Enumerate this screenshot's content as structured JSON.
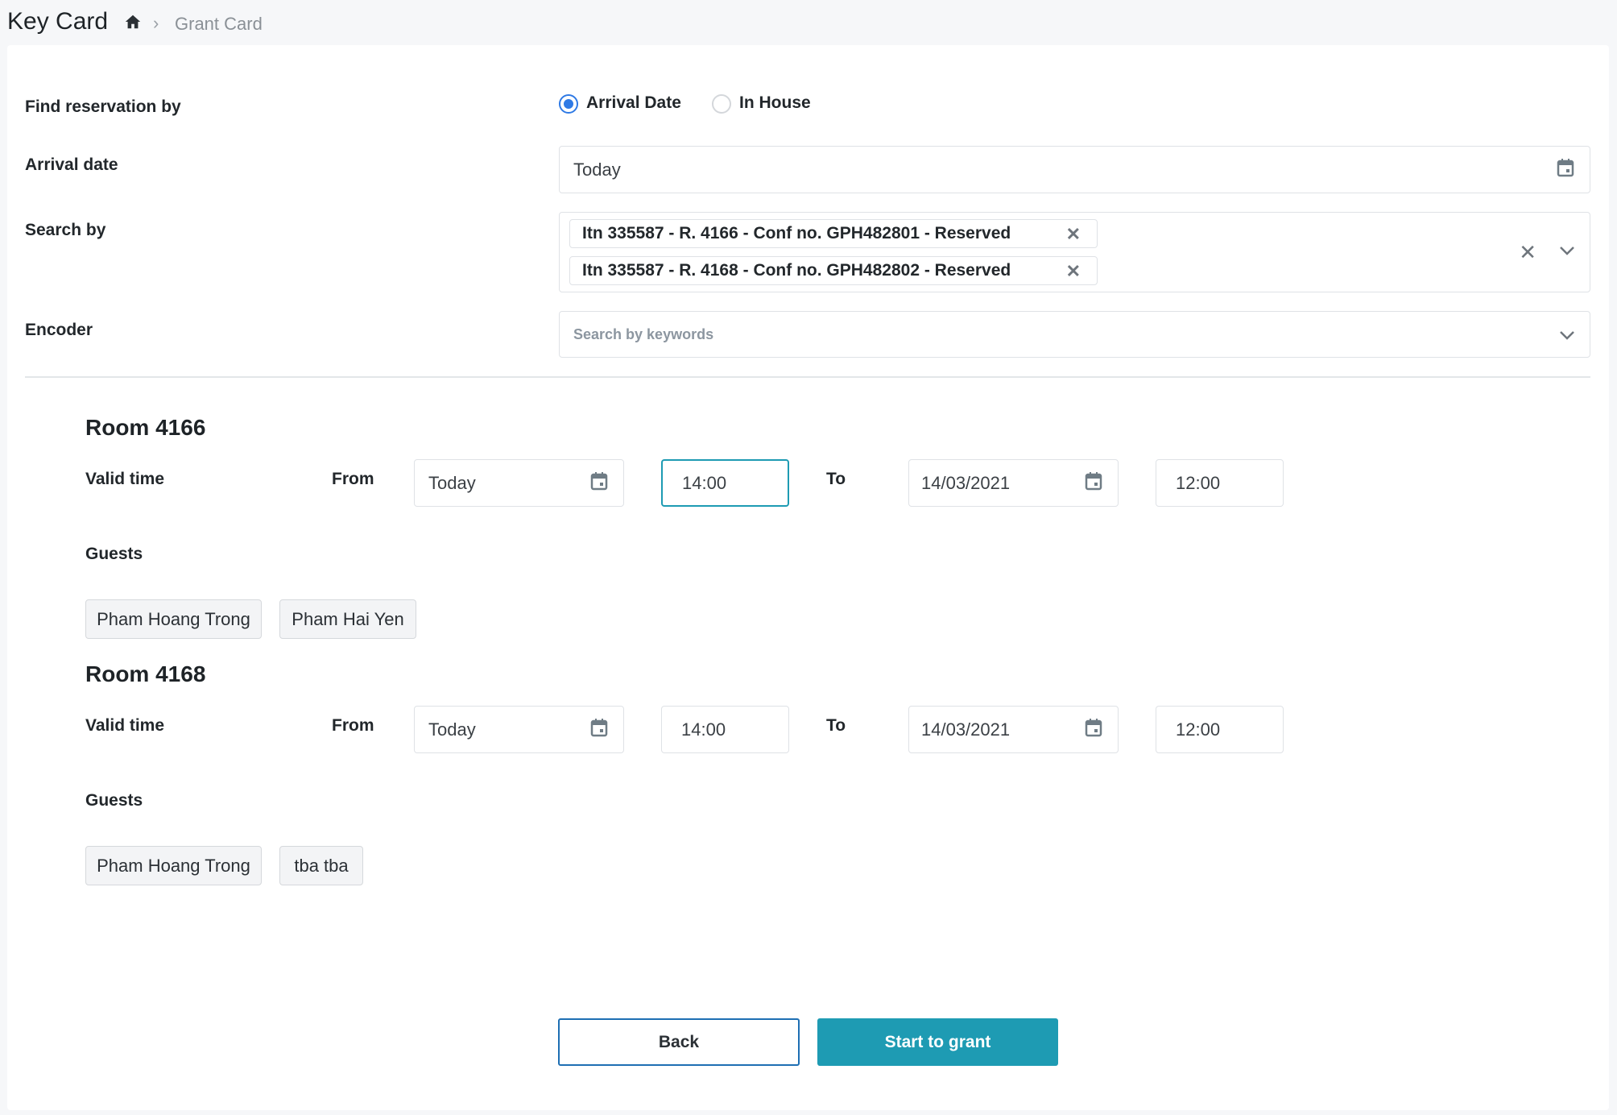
{
  "header": {
    "title": "Key Card",
    "breadcrumb": "Grant Card"
  },
  "form": {
    "find_label": "Find reservation by",
    "radio_options": [
      {
        "label": "Arrival Date",
        "selected": true
      },
      {
        "label": "In House",
        "selected": false
      }
    ],
    "arrival_label": "Arrival date",
    "arrival_value": "Today",
    "search_label": "Search by",
    "search_chips": [
      "Itn 335587 - R. 4166 - Conf no. GPH482801 - Reserved",
      "Itn 335587 - R. 4168 - Conf no. GPH482802 - Reserved"
    ],
    "encoder_label": "Encoder",
    "encoder_placeholder": "Search by keywords"
  },
  "rooms": [
    {
      "title": "Room 4166",
      "valid_label": "Valid time",
      "from_label": "From",
      "from_date": "Today",
      "from_time": "14:00",
      "to_label": "To",
      "to_date": "14/03/2021",
      "to_time": "12:00",
      "guests_label": "Guests",
      "guests": [
        "Pham Hoang Trong",
        "Pham Hai Yen"
      ]
    },
    {
      "title": "Room 4168",
      "valid_label": "Valid time",
      "from_label": "From",
      "from_date": "Today",
      "from_time": "14:00",
      "to_label": "To",
      "to_date": "14/03/2021",
      "to_time": "12:00",
      "guests_label": "Guests",
      "guests": [
        "Pham Hoang Trong",
        "tba tba"
      ]
    }
  ],
  "actions": {
    "back": "Back",
    "grant": "Start to grant"
  },
  "colors": {
    "accent": "#1e9bb3",
    "radio": "#2f7ae5"
  }
}
